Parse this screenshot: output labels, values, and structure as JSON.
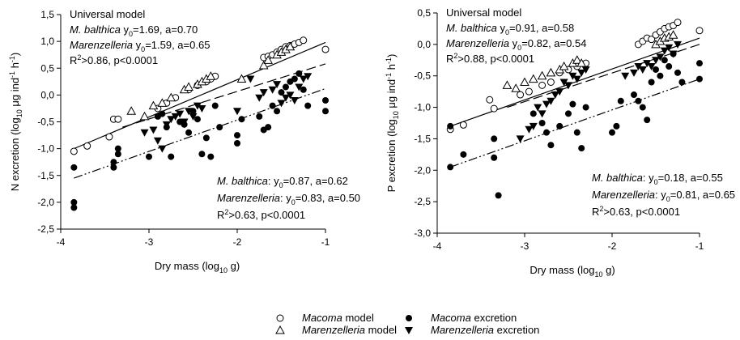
{
  "chart_data": [
    {
      "type": "scatter",
      "xlabel_html": [
        "Dry mass (log",
        "10",
        " g)"
      ],
      "ylabel_parts": [
        "N excretion (log",
        "10",
        " μg ind",
        "-1",
        " h",
        "-1",
        ")"
      ],
      "xlim": [
        -4,
        -1
      ],
      "ylim": [
        -2.5,
        1.5
      ],
      "xticks": [
        "-4",
        "-3",
        "-2",
        "-1"
      ],
      "yticks": [
        "-2,5",
        "-2,0",
        "-1,5",
        "-1,0",
        "-0,5",
        "0,0",
        "0,5",
        "1,0",
        "1,5"
      ],
      "ytick_values": [
        -2.5,
        -2.0,
        -1.5,
        -1.0,
        -0.5,
        0.0,
        0.5,
        1.0,
        1.5
      ],
      "xtick_values": [
        -4,
        -3,
        -2,
        -1
      ],
      "annot_top": {
        "title": "Universal model",
        "line1_species": "M. balthica",
        "line1_params": " y0=1.69, a=0.70",
        "line2_species": "Marenzelleria",
        "line2_params": " y0=1.59, a=0.65",
        "line3": "R2>0.86, p<0.0001"
      },
      "annot_bottom": {
        "line1_species": "M. balthica",
        "line1_params": ": y0=0.87, a=0.62",
        "line2_species": "Marenzelleria",
        "line2_params": ": y0=0.83, a=0.50",
        "line3": "R2>0.63, p<0.0001"
      },
      "series": [
        {
          "name": "Macoma model",
          "marker": "open-circle",
          "x": [
            -3.85,
            -3.7,
            -3.45,
            -3.4,
            -3.35,
            -2.9,
            -2.8,
            -2.7,
            -2.55,
            -2.45,
            -2.35,
            -2.3,
            -2.25,
            -1.7,
            -1.65,
            -1.6,
            -1.55,
            -1.5,
            -1.45,
            -1.4,
            -1.35,
            -1.3,
            -1.25,
            -1.0
          ],
          "y": [
            -1.05,
            -0.95,
            -0.78,
            -0.45,
            -0.45,
            -0.25,
            -0.15,
            -0.05,
            0.1,
            0.18,
            0.25,
            0.3,
            0.35,
            0.7,
            0.72,
            0.75,
            0.8,
            0.85,
            0.9,
            0.92,
            0.95,
            0.98,
            1.02,
            0.85
          ]
        },
        {
          "name": "Marenzelleria model",
          "marker": "open-triangle",
          "x": [
            -3.2,
            -3.05,
            -2.95,
            -2.85,
            -2.75,
            -2.6,
            -2.55,
            -2.45,
            -2.4,
            -2.35,
            -2.3,
            -1.95,
            -1.7,
            -1.65,
            -1.55,
            -1.5,
            -1.45,
            -1.4
          ],
          "y": [
            -0.3,
            -0.4,
            -0.2,
            -0.15,
            -0.05,
            0.1,
            0.15,
            0.2,
            0.25,
            0.3,
            0.35,
            0.3,
            0.55,
            0.65,
            0.75,
            0.8,
            0.85,
            0.9
          ]
        },
        {
          "name": "Macoma excretion",
          "marker": "filled-circle",
          "x": [
            -3.85,
            -3.85,
            -3.85,
            -3.4,
            -3.4,
            -3.35,
            -3.35,
            -3.0,
            -2.9,
            -2.85,
            -2.8,
            -2.75,
            -2.65,
            -2.6,
            -2.55,
            -2.5,
            -2.45,
            -2.4,
            -2.35,
            -2.3,
            -2.25,
            -2.2,
            -2.0,
            -2.0,
            -1.95,
            -1.75,
            -1.7,
            -1.65,
            -1.6,
            -1.55,
            -1.5,
            -1.45,
            -1.4,
            -1.35,
            -1.3,
            -1.25,
            -1.2,
            -1.0,
            -1.0
          ],
          "y": [
            -1.35,
            -2.0,
            -2.1,
            -1.35,
            -1.25,
            -1.0,
            -1.1,
            -1.15,
            -0.4,
            -0.35,
            -0.6,
            -1.15,
            -0.5,
            -0.55,
            -0.7,
            -0.3,
            -0.45,
            -1.1,
            -0.8,
            -1.15,
            -0.2,
            -0.6,
            -0.75,
            -0.9,
            -0.45,
            -0.4,
            -0.65,
            -0.6,
            -0.2,
            -0.3,
            0.05,
            0.15,
            0.25,
            0.3,
            0.4,
            0.1,
            -0.2,
            -0.1,
            -0.3
          ]
        },
        {
          "name": "Marenzelleria excretion",
          "marker": "filled-triangle",
          "x": [
            -3.05,
            -2.95,
            -2.9,
            -2.85,
            -2.8,
            -2.75,
            -2.7,
            -2.65,
            -2.6,
            -2.55,
            -2.5,
            -2.45,
            -2.4,
            -2.0,
            -1.85,
            -1.75,
            -1.7,
            -1.6,
            -1.55,
            -1.5,
            -1.45,
            -1.4,
            -1.35,
            -1.3,
            -1.25,
            -1.2
          ],
          "y": [
            -0.7,
            -0.65,
            -0.85,
            -1.0,
            -0.55,
            -0.45,
            -0.4,
            -0.35,
            -0.5,
            -0.3,
            -0.4,
            -0.2,
            -0.25,
            -0.3,
            0.3,
            -0.05,
            0.05,
            0.1,
            0.2,
            -0.15,
            -0.05,
            0.0,
            -0.1,
            0.15,
            0.3,
            0.35
          ]
        }
      ],
      "lines": [
        {
          "name": "Universal model",
          "style": "solid",
          "x": [
            -3.85,
            -1.0
          ],
          "y": [
            -1.0,
            0.98
          ]
        },
        {
          "name": "M. balthica",
          "style": "dash",
          "x": [
            -3.3,
            -1.0
          ],
          "y": [
            -0.6,
            0.58
          ]
        },
        {
          "name": "Marenzelleria",
          "style": "dash-dot-dot",
          "x": [
            -3.85,
            -1.0
          ],
          "y": [
            -1.55,
            0.12
          ]
        }
      ]
    },
    {
      "type": "scatter",
      "xlabel_html": [
        "Dry mass (log",
        "10",
        " g)"
      ],
      "ylabel_parts": [
        "P excretion (log",
        "10",
        " μg ind",
        "-1",
        " h",
        "-1",
        ")"
      ],
      "xlim": [
        -4,
        -1
      ],
      "ylim": [
        -3.0,
        0.5
      ],
      "xticks": [
        "-4",
        "-3",
        "-2",
        "-1"
      ],
      "yticks": [
        "-3,0",
        "-2,5",
        "-2,0",
        "-1,5",
        "-1,0",
        "-0,5",
        "0,0",
        "0,5"
      ],
      "ytick_values": [
        -3.0,
        -2.5,
        -2.0,
        -1.5,
        -1.0,
        -0.5,
        0.0,
        0.5
      ],
      "xtick_values": [
        -4,
        -3,
        -2,
        -1
      ],
      "annot_top": {
        "title": "Universal model",
        "line1_species": "M. balthica",
        "line1_params": " y0=0.91, a=0.58",
        "line2_species": "Marenzelleria",
        "line2_params": " y0=0.82, a=0.54",
        "line3": "R2>0.88, p<0.0001"
      },
      "annot_bottom": {
        "line1_species": "M. balthica",
        "line1_params": ": y0=0.18, a=0.55",
        "line2_species": "Marenzelleria",
        "line2_params": ": y0=0.81, a=0.65",
        "line3": "R2>0.63, p<0.0001"
      },
      "series": [
        {
          "name": "Macoma model",
          "marker": "open-circle",
          "x": [
            -3.85,
            -3.7,
            -3.4,
            -3.35,
            -3.05,
            -2.95,
            -2.8,
            -2.7,
            -2.6,
            -2.5,
            -2.4,
            -2.3,
            -1.7,
            -1.65,
            -1.6,
            -1.55,
            -1.5,
            -1.45,
            -1.4,
            -1.35,
            -1.3,
            -1.25,
            -1.0
          ],
          "y": [
            -1.35,
            -1.28,
            -0.88,
            -1.02,
            -0.8,
            -0.75,
            -0.65,
            -0.6,
            -0.45,
            -0.4,
            -0.35,
            -0.3,
            0.0,
            0.05,
            0.1,
            0.08,
            0.15,
            0.2,
            0.25,
            0.28,
            0.3,
            0.35,
            0.22
          ]
        },
        {
          "name": "Marenzelleria model",
          "marker": "open-triangle",
          "x": [
            -3.2,
            -3.1,
            -3.0,
            -2.9,
            -2.8,
            -2.7,
            -2.6,
            -2.55,
            -2.45,
            -2.4,
            -2.35,
            -1.5,
            -1.45,
            -1.4,
            -1.35,
            -1.3
          ],
          "y": [
            -0.65,
            -0.7,
            -0.6,
            -0.55,
            -0.5,
            -0.45,
            -0.4,
            -0.35,
            -0.3,
            -0.25,
            -0.3,
            0.0,
            0.05,
            0.1,
            0.12,
            0.15
          ]
        },
        {
          "name": "Macoma excretion",
          "marker": "filled-circle",
          "x": [
            -3.85,
            -3.85,
            -3.7,
            -3.35,
            -3.35,
            -3.3,
            -2.9,
            -2.8,
            -2.75,
            -2.7,
            -2.6,
            -2.5,
            -2.45,
            -2.4,
            -2.35,
            -2.3,
            -2.0,
            -1.95,
            -1.9,
            -1.75,
            -1.7,
            -1.65,
            -1.6,
            -1.55,
            -1.5,
            -1.45,
            -1.4,
            -1.35,
            -1.3,
            -1.25,
            -1.2,
            -1.0,
            -1.0
          ],
          "y": [
            -1.3,
            -1.95,
            -1.75,
            -1.5,
            -1.8,
            -2.4,
            -1.1,
            -1.25,
            -1.4,
            -1.6,
            -1.3,
            -1.1,
            -0.95,
            -1.4,
            -1.65,
            -1.0,
            -1.4,
            -1.3,
            -0.9,
            -0.8,
            -0.9,
            -1.0,
            -1.2,
            -0.6,
            -0.4,
            -0.5,
            -0.25,
            -0.35,
            -0.15,
            -0.45,
            -0.6,
            -0.3,
            -0.55
          ]
        },
        {
          "name": "Marenzelleria excretion",
          "marker": "filled-triangle",
          "x": [
            -3.05,
            -2.95,
            -2.9,
            -2.85,
            -2.8,
            -2.75,
            -2.7,
            -2.65,
            -2.6,
            -2.55,
            -2.5,
            -2.45,
            -2.4,
            -2.35,
            -2.3,
            -1.85,
            -1.75,
            -1.7,
            -1.65,
            -1.6,
            -1.55,
            -1.5,
            -1.45,
            -1.4,
            -1.35,
            -1.3,
            -1.25
          ],
          "y": [
            -1.5,
            -1.35,
            -1.3,
            -1.0,
            -1.1,
            -0.95,
            -0.9,
            -0.8,
            -0.75,
            -0.6,
            -0.65,
            -0.5,
            -0.55,
            -0.45,
            -0.4,
            -0.5,
            -0.45,
            -0.35,
            -0.4,
            -0.3,
            -0.35,
            -0.25,
            -0.2,
            -0.1,
            -0.05,
            -0.15,
            0.0
          ]
        }
      ],
      "lines": [
        {
          "name": "Universal model",
          "style": "solid",
          "x": [
            -3.85,
            -1.0
          ],
          "y": [
            -1.3,
            0.1
          ]
        },
        {
          "name": "M. balthica",
          "style": "dash",
          "x": [
            -3.2,
            -1.0
          ],
          "y": [
            -1.0,
            0.0
          ]
        },
        {
          "name": "Marenzelleria",
          "style": "dash-dot-dot",
          "x": [
            -3.85,
            -1.0
          ],
          "y": [
            -1.95,
            -0.55
          ]
        }
      ]
    }
  ],
  "legend": [
    {
      "marker": "open-circle",
      "label_italic": "Macoma",
      "label_rest": " model"
    },
    {
      "marker": "filled-circle",
      "label_italic": "Macoma",
      "label_rest": " excretion"
    },
    {
      "marker": "open-triangle",
      "label_italic": "Marenzelleria",
      "label_rest": " model"
    },
    {
      "marker": "filled-triangle",
      "label_italic": "Marenzelleria",
      "label_rest": " excretion"
    }
  ]
}
